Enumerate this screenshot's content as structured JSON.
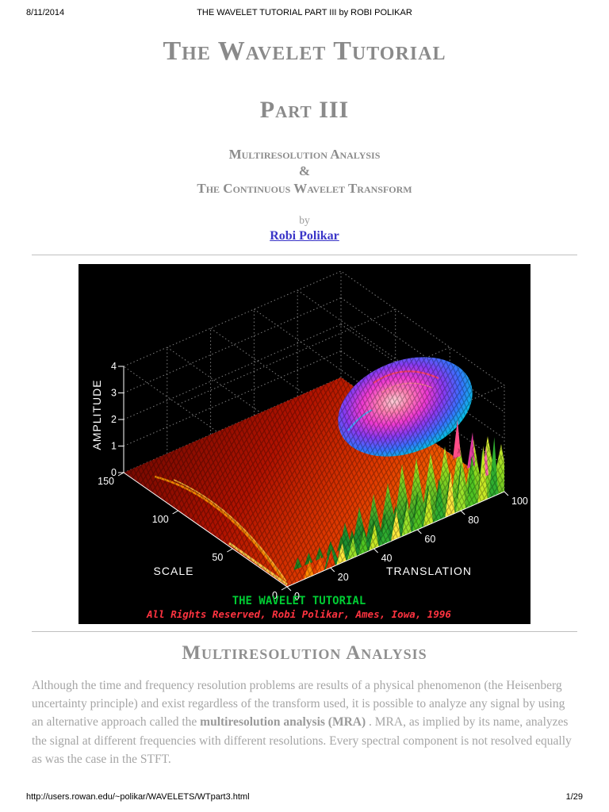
{
  "print_header": {
    "date": "8/11/2014",
    "title": "THE WAVELET TUTORIAL PART III by ROBI POLIKAR"
  },
  "print_footer": {
    "url": "http://users.rowan.edu/~polikar/WAVELETS/WTpart3.html",
    "page": "1/29"
  },
  "article": {
    "title": "The Wavelet Tutorial",
    "part": "Part III",
    "subtitle_line1": "Multiresolution Analysis",
    "subtitle_line2": "&",
    "subtitle_line3": "The Continuous Wavelet Transform",
    "byline": "by",
    "author": "Robi Polikar",
    "section_heading": "Multiresolution Analysis",
    "paragraph": {
      "before_bold": "Although the time and frequency resolution problems are results of a physical phenomenon (the Heisenberg uncertainty principle) and exist regardless of the transform used, it is possible to analyze any signal by using an alternative approach called the ",
      "bold": "multiresolution analysis (MRA)",
      "after_bold": " . MRA, as implied by its name, analyzes the signal at different frequencies with different resolutions. Every spectral component is not resolved equally as was the case in the STFT."
    }
  },
  "figure": {
    "kind": "3d-mesh-surface-plot of continuous wavelet transform",
    "background": "#000000",
    "z_axis": {
      "label": "AMPLITUDE",
      "ticks": [
        0,
        1,
        2,
        3,
        4
      ]
    },
    "y_axis": {
      "label": "SCALE",
      "ticks": [
        0,
        50,
        100,
        150
      ]
    },
    "x_axis": {
      "label": "TRANSLATION",
      "ticks": [
        0,
        20,
        40,
        60,
        80,
        100
      ]
    },
    "caption_line1": {
      "text": "THE WAVELET TUTORIAL",
      "color": "#00cc33"
    },
    "caption_line2": {
      "text": "All Rights Reserved, Robi Polikar, Ames, Iowa, 1996",
      "color": "#ff3340"
    }
  },
  "colors": {
    "link": "#3a35c8",
    "heading_gray": "#8a8a8a",
    "body_gray": "#a5a5a5"
  }
}
